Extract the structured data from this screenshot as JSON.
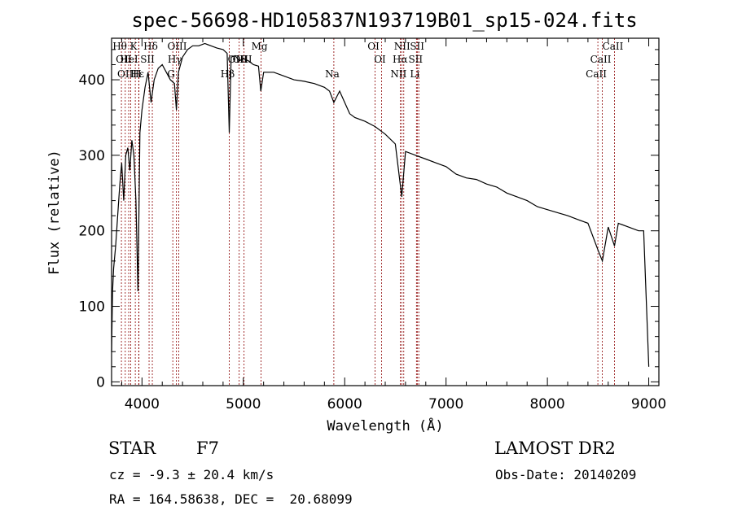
{
  "chart_data": {
    "type": "line",
    "title": "spec-56698-HD105837N193719B01_sp15-024.fits",
    "xlabel": "Wavelength (Å)",
    "ylabel": "Flux (relative)",
    "xlim": [
      3700,
      9100
    ],
    "ylim": [
      -5,
      455
    ],
    "x_ticks": [
      4000,
      5000,
      6000,
      7000,
      8000,
      9000
    ],
    "y_ticks": [
      0,
      100,
      200,
      300,
      400
    ],
    "series": [
      {
        "values": [
          [
            3700,
            40
          ],
          [
            3710,
            120
          ],
          [
            3720,
            150
          ],
          [
            3740,
            180
          ],
          [
            3760,
            220
          ],
          [
            3780,
            260
          ],
          [
            3800,
            290
          ],
          [
            3820,
            240
          ],
          [
            3840,
            300
          ],
          [
            3860,
            310
          ],
          [
            3880,
            280
          ],
          [
            3900,
            320
          ],
          [
            3920,
            300
          ],
          [
            3940,
            240
          ],
          [
            3960,
            120
          ],
          [
            3980,
            330
          ],
          [
            4000,
            360
          ],
          [
            4030,
            390
          ],
          [
            4060,
            410
          ],
          [
            4090,
            370
          ],
          [
            4120,
            400
          ],
          [
            4160,
            415
          ],
          [
            4200,
            420
          ],
          [
            4240,
            410
          ],
          [
            4280,
            400
          ],
          [
            4320,
            395
          ],
          [
            4340,
            360
          ],
          [
            4360,
            410
          ],
          [
            4400,
            430
          ],
          [
            4450,
            440
          ],
          [
            4500,
            445
          ],
          [
            4560,
            445
          ],
          [
            4620,
            448
          ],
          [
            4680,
            445
          ],
          [
            4740,
            442
          ],
          [
            4800,
            440
          ],
          [
            4840,
            435
          ],
          [
            4861,
            330
          ],
          [
            4880,
            430
          ],
          [
            4920,
            432
          ],
          [
            4960,
            425
          ],
          [
            5000,
            428
          ],
          [
            5050,
            425
          ],
          [
            5100,
            420
          ],
          [
            5150,
            418
          ],
          [
            5172,
            385
          ],
          [
            5200,
            410
          ],
          [
            5300,
            410
          ],
          [
            5400,
            405
          ],
          [
            5500,
            400
          ],
          [
            5600,
            398
          ],
          [
            5700,
            395
          ],
          [
            5800,
            390
          ],
          [
            5850,
            385
          ],
          [
            5893,
            370
          ],
          [
            5950,
            385
          ],
          [
            6000,
            370
          ],
          [
            6050,
            355
          ],
          [
            6100,
            350
          ],
          [
            6200,
            345
          ],
          [
            6300,
            338
          ],
          [
            6400,
            328
          ],
          [
            6500,
            315
          ],
          [
            6563,
            245
          ],
          [
            6600,
            305
          ],
          [
            6700,
            300
          ],
          [
            6800,
            295
          ],
          [
            6900,
            290
          ],
          [
            7000,
            285
          ],
          [
            7100,
            275
          ],
          [
            7200,
            270
          ],
          [
            7300,
            268
          ],
          [
            7400,
            262
          ],
          [
            7500,
            258
          ],
          [
            7600,
            250
          ],
          [
            7700,
            245
          ],
          [
            7800,
            240
          ],
          [
            7900,
            232
          ],
          [
            8000,
            228
          ],
          [
            8100,
            224
          ],
          [
            8200,
            220
          ],
          [
            8300,
            215
          ],
          [
            8400,
            210
          ],
          [
            8498,
            175
          ],
          [
            8542,
            160
          ],
          [
            8600,
            205
          ],
          [
            8662,
            180
          ],
          [
            8700,
            210
          ],
          [
            8800,
            205
          ],
          [
            8900,
            200
          ],
          [
            8950,
            200
          ],
          [
            9000,
            20
          ]
        ]
      }
    ],
    "line_marks": [
      {
        "wl": 3797,
        "label": "Hθ",
        "row": 0
      },
      {
        "wl": 3835,
        "label": "OII",
        "row": 1
      },
      {
        "wl": 3869,
        "label": "OIII",
        "row": 2
      },
      {
        "wl": 3889,
        "label": "HeI",
        "row": 1
      },
      {
        "wl": 3934,
        "label": "K",
        "row": 0
      },
      {
        "wl": 3968,
        "label": "H",
        "row": 2
      },
      {
        "wl": 3970,
        "label": "Hε",
        "row": 2
      },
      {
        "wl": 4070,
        "label": "SII",
        "row": 1
      },
      {
        "wl": 4102,
        "label": "Hδ",
        "row": 0
      },
      {
        "wl": 4304,
        "label": "G",
        "row": 2
      },
      {
        "wl": 4340,
        "label": "Hγ",
        "row": 1
      },
      {
        "wl": 4363,
        "label": "OIII",
        "row": 0
      },
      {
        "wl": 4861,
        "label": "Hβ",
        "row": 2
      },
      {
        "wl": 4959,
        "label": "OIII",
        "row": 1
      },
      {
        "wl": 5007,
        "label": "OIII",
        "row": 1
      },
      {
        "wl": 5175,
        "label": "Mg",
        "row": 0
      },
      {
        "wl": 5893,
        "label": "Na",
        "row": 2
      },
      {
        "wl": 6300,
        "label": "OI",
        "row": 0
      },
      {
        "wl": 6364,
        "label": "OI",
        "row": 1
      },
      {
        "wl": 6548,
        "label": "NII",
        "row": 2
      },
      {
        "wl": 6563,
        "label": "Hα",
        "row": 1
      },
      {
        "wl": 6583,
        "label": "NII",
        "row": 0
      },
      {
        "wl": 6708,
        "label": "Li",
        "row": 2
      },
      {
        "wl": 6716,
        "label": "SII",
        "row": 1
      },
      {
        "wl": 6731,
        "label": "SII",
        "row": 0
      },
      {
        "wl": 8498,
        "label": "CaII",
        "row": 2
      },
      {
        "wl": 8542,
        "label": "CaII",
        "row": 1
      },
      {
        "wl": 8662,
        "label": "CaII",
        "row": 0
      }
    ],
    "line_color": "#8b0000",
    "spectrum_color": "#000000",
    "legend": "none",
    "grid": false
  },
  "info": {
    "object_type": "STAR",
    "subclass": "F7",
    "redshift": "cz = -9.3 ± 20.4 km/s",
    "coords": "RA = 164.58638, DEC =  20.68099",
    "survey": "LAMOST DR2",
    "obs_date": "Obs-Date: 20140209"
  }
}
